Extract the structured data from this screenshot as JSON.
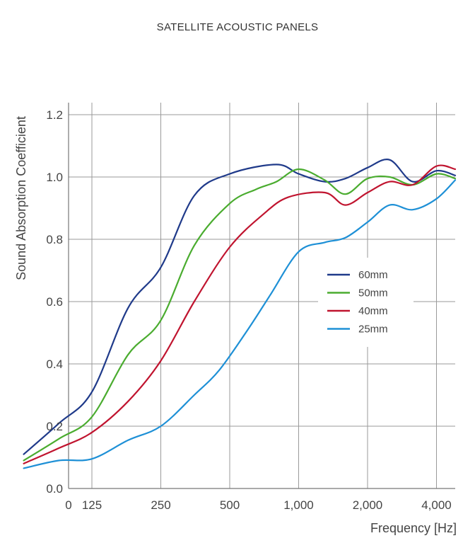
{
  "chart_data": {
    "type": "line",
    "title": "SATELLITE ACOUSTIC PANELS",
    "xlabel": "Frequency [Hz]",
    "ylabel": "Sound Absorption Coefficient",
    "xscale": "log2",
    "x_ticks": [
      {
        "value": 0,
        "label": "0"
      },
      {
        "value": 125,
        "label": "125"
      },
      {
        "value": 250,
        "label": "250"
      },
      {
        "value": 500,
        "label": "500"
      },
      {
        "value": 1000,
        "label": "1,000"
      },
      {
        "value": 2000,
        "label": "2,000"
      },
      {
        "value": 4000,
        "label": "4,000"
      }
    ],
    "y_ticks": [
      "0.0",
      "0.2",
      "0.4",
      "0.6",
      "0.8",
      "1.0",
      "1.2"
    ],
    "ylim": [
      0,
      1.2
    ],
    "grid": true,
    "legend_position": "center-right",
    "series": [
      {
        "name": "60mm",
        "color": "#1f3a8a",
        "points": [
          [
            63,
            0.11
          ],
          [
            90,
            0.21
          ],
          [
            125,
            0.31
          ],
          [
            180,
            0.58
          ],
          [
            250,
            0.71
          ],
          [
            350,
            0.94
          ],
          [
            500,
            1.01
          ],
          [
            800,
            1.04
          ],
          [
            1000,
            1.01
          ],
          [
            1300,
            0.985
          ],
          [
            1600,
            0.995
          ],
          [
            2000,
            1.03
          ],
          [
            2500,
            1.055
          ],
          [
            3150,
            0.985
          ],
          [
            4000,
            1.02
          ],
          [
            5000,
            1.005
          ]
        ]
      },
      {
        "name": "50mm",
        "color": "#4aac2f",
        "points": [
          [
            63,
            0.09
          ],
          [
            90,
            0.16
          ],
          [
            125,
            0.23
          ],
          [
            180,
            0.43
          ],
          [
            250,
            0.54
          ],
          [
            350,
            0.78
          ],
          [
            500,
            0.915
          ],
          [
            650,
            0.96
          ],
          [
            800,
            0.985
          ],
          [
            1000,
            1.025
          ],
          [
            1300,
            0.99
          ],
          [
            1600,
            0.945
          ],
          [
            2000,
            0.995
          ],
          [
            2500,
            1.0
          ],
          [
            3150,
            0.975
          ],
          [
            4000,
            1.01
          ],
          [
            5000,
            0.995
          ]
        ]
      },
      {
        "name": "40mm",
        "color": "#c0142f",
        "points": [
          [
            63,
            0.08
          ],
          [
            90,
            0.13
          ],
          [
            125,
            0.18
          ],
          [
            180,
            0.28
          ],
          [
            250,
            0.41
          ],
          [
            350,
            0.6
          ],
          [
            500,
            0.775
          ],
          [
            700,
            0.88
          ],
          [
            900,
            0.935
          ],
          [
            1300,
            0.95
          ],
          [
            1600,
            0.91
          ],
          [
            2000,
            0.95
          ],
          [
            2500,
            0.985
          ],
          [
            3150,
            0.975
          ],
          [
            4000,
            1.035
          ],
          [
            5000,
            1.025
          ]
        ]
      },
      {
        "name": "25mm",
        "color": "#1e90d6",
        "points": [
          [
            63,
            0.065
          ],
          [
            90,
            0.09
          ],
          [
            125,
            0.095
          ],
          [
            180,
            0.155
          ],
          [
            250,
            0.2
          ],
          [
            350,
            0.3
          ],
          [
            450,
            0.38
          ],
          [
            600,
            0.51
          ],
          [
            750,
            0.62
          ],
          [
            1000,
            0.76
          ],
          [
            1300,
            0.79
          ],
          [
            1600,
            0.805
          ],
          [
            2000,
            0.855
          ],
          [
            2500,
            0.91
          ],
          [
            3150,
            0.895
          ],
          [
            4000,
            0.93
          ],
          [
            5000,
            0.99
          ]
        ]
      }
    ]
  }
}
